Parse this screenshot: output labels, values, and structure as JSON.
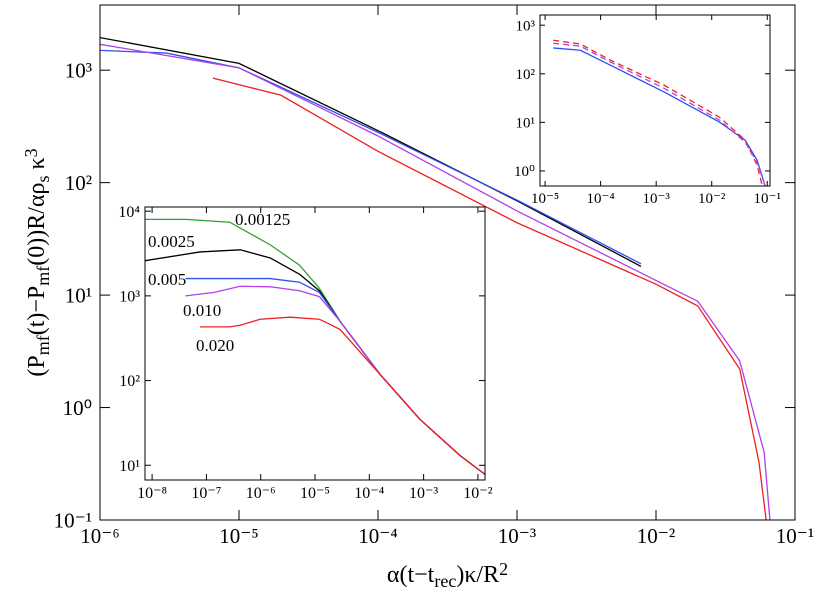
{
  "chart_data": [
    {
      "type": "line",
      "xscale": "log",
      "yscale": "log",
      "xlabel": [
        {
          "text": "α(t−t"
        },
        {
          "text": "rec",
          "shift": "sub"
        },
        {
          "text": ")κ/R"
        },
        {
          "text": "2",
          "shift": "sup"
        }
      ],
      "ylabel": [
        {
          "text": "(P"
        },
        {
          "text": "mf",
          "shift": "sub"
        },
        {
          "text": "(t)−P"
        },
        {
          "text": "mf",
          "shift": "sub"
        },
        {
          "text": "(0))R/αρ"
        },
        {
          "text": "s",
          "shift": "sub"
        },
        {
          "text": " κ"
        },
        {
          "text": "3",
          "shift": "sup"
        }
      ],
      "xlim": [
        1e-06,
        0.1
      ],
      "ylim": [
        0.1,
        3800
      ],
      "xticks": [
        {
          "value": 1e-06,
          "label": "10⁻⁶"
        },
        {
          "value": 1e-05,
          "label": "10⁻⁵"
        },
        {
          "value": 0.0001,
          "label": "10⁻⁴"
        },
        {
          "value": 0.001,
          "label": "10⁻³"
        },
        {
          "value": 0.01,
          "label": "10⁻²"
        },
        {
          "value": 0.1,
          "label": "10⁻¹"
        }
      ],
      "yticks": [
        {
          "value": 0.1,
          "label": "10⁻¹"
        },
        {
          "value": 1,
          "label": "10⁰"
        },
        {
          "value": 10,
          "label": "10¹"
        },
        {
          "value": 100,
          "label": "10²"
        },
        {
          "value": 1000,
          "label": "10³"
        }
      ],
      "series": [
        {
          "color": "#000000",
          "x": [
            1e-06,
            1e-05,
            0.0001,
            0.001,
            0.0078
          ],
          "values": [
            1950,
            1150,
            290,
            69,
            18
          ]
        },
        {
          "color": "#3050f0",
          "x": [
            1e-06,
            3e-06,
            1e-05,
            0.0001,
            0.001,
            0.0078
          ],
          "values": [
            1500,
            1420,
            1050,
            280,
            70,
            19
          ]
        },
        {
          "color": "#b040e8",
          "x": [
            1e-06,
            1e-05,
            0.0001,
            0.001,
            0.01,
            0.02,
            0.04,
            0.06,
            0.066
          ],
          "values": [
            1700,
            1050,
            260,
            56,
            13.5,
            8.8,
            2.6,
            0.4,
            0.1
          ]
        },
        {
          "color": "#f02020",
          "x": [
            6.5e-06,
            2e-05,
            0.0001,
            0.001,
            0.01,
            0.02,
            0.04,
            0.055,
            0.062
          ],
          "values": [
            850,
            600,
            190,
            44,
            12.5,
            8,
            2.2,
            0.33,
            0.1
          ]
        }
      ]
    },
    {
      "type": "line",
      "xscale": "log",
      "yscale": "log",
      "legend": "inline",
      "xlim": [
        7.4e-09,
        0.0135
      ],
      "ylim": [
        6.7,
        11200
      ],
      "xticks": [
        {
          "value": 1e-08,
          "label": "10⁻⁸"
        },
        {
          "value": 1e-07,
          "label": "10⁻⁷"
        },
        {
          "value": 1e-06,
          "label": "10⁻⁶"
        },
        {
          "value": 1e-05,
          "label": "10⁻⁵"
        },
        {
          "value": 0.0001,
          "label": "10⁻⁴"
        },
        {
          "value": 0.001,
          "label": "10⁻³"
        },
        {
          "value": 0.01,
          "label": "10⁻²"
        }
      ],
      "yticks": [
        {
          "value": 10,
          "label": "10¹"
        },
        {
          "value": 100,
          "label": "10²"
        },
        {
          "value": 1000,
          "label": "10³"
        },
        {
          "value": 10000,
          "label": "10⁴"
        }
      ],
      "series": [
        {
          "name": "0.00125",
          "color": "#30a030",
          "x": [
            7.4e-09,
            4.1e-08,
            2.7e-07,
            1.5e-06,
            5.2e-06,
            1.2e-05,
            2.9e-05,
            0.00016,
            0.00085,
            0.0047,
            0.0135
          ],
          "values": [
            8000,
            8000,
            7400,
            4000,
            2300,
            1230,
            500,
            117,
            35,
            13,
            7.8
          ]
        },
        {
          "name": "0.0025",
          "color": "#000000",
          "x": [
            7.4e-09,
            7.6e-08,
            4.2e-07,
            1.5e-06,
            5.2e-06,
            1.2e-05,
            2.9e-05,
            0.00016,
            0.00085,
            0.0047,
            0.0135
          ],
          "values": [
            2600,
            3300,
            3500,
            2800,
            1800,
            1150,
            500,
            117,
            35,
            13,
            7.8
          ]
        },
        {
          "name": "0.005",
          "color": "#3050f0",
          "x": [
            4.1e-08,
            2.7e-07,
            1.5e-06,
            5.2e-06,
            1.2e-05,
            2.9e-05,
            0.00016,
            0.00085,
            0.0047,
            0.0135
          ],
          "values": [
            1600,
            1600,
            1600,
            1450,
            1100,
            500,
            117,
            35,
            13,
            7.8
          ]
        },
        {
          "name": "0.010",
          "color": "#b040e8",
          "x": [
            4.1e-08,
            1.4e-07,
            4.2e-07,
            1.5e-06,
            5.2e-06,
            1.2e-05,
            2.9e-05,
            0.00016,
            0.00085,
            0.0047,
            0.0135
          ],
          "values": [
            1000,
            1100,
            1300,
            1280,
            1150,
            980,
            500,
            117,
            35,
            13,
            7.8
          ]
        },
        {
          "name": "0.020",
          "color": "#f02020",
          "x": [
            7.6e-08,
            2.7e-07,
            4.2e-07,
            9.8e-07,
            3.5e-06,
            1.2e-05,
            1.9e-05,
            2.9e-05,
            0.00016,
            0.00085,
            0.0047,
            0.0135
          ],
          "values": [
            430,
            430,
            450,
            530,
            560,
            530,
            460,
            400,
            117,
            35,
            13,
            7.8
          ]
        }
      ]
    },
    {
      "type": "line",
      "xscale": "log",
      "yscale": "log",
      "xlim": [
        8.1e-06,
        0.112
      ],
      "ylim": [
        0.49,
        1620
      ],
      "xticks": [
        {
          "value": 1e-05,
          "label": "10⁻⁵"
        },
        {
          "value": 0.0001,
          "label": "10⁻⁴"
        },
        {
          "value": 0.001,
          "label": "10⁻³"
        },
        {
          "value": 0.01,
          "label": "10⁻²"
        },
        {
          "value": 0.1,
          "label": "10⁻¹"
        }
      ],
      "yticks": [
        {
          "value": 1,
          "label": "10⁰"
        },
        {
          "value": 10,
          "label": "10¹"
        },
        {
          "value": 100,
          "label": "10²"
        },
        {
          "value": 1000,
          "label": "10³"
        }
      ],
      "series": [
        {
          "color": "#3050f0",
          "dash": false,
          "x": [
            1.4e-05,
            4.3e-05,
            0.00015,
            0.0014,
            0.014,
            0.04,
            0.066,
            0.091
          ],
          "values": [
            340,
            305,
            150,
            42,
            10,
            4.3,
            1.65,
            0.5
          ]
        },
        {
          "color": "#f02020",
          "dash": true,
          "x": [
            1.4e-05,
            4.3e-05,
            0.00015,
            0.0014,
            0.014,
            0.04,
            0.066,
            0.081
          ],
          "values": [
            490,
            410,
            190,
            58,
            12.6,
            4.3,
            1.3,
            0.5
          ]
        },
        {
          "color": "#b040e8",
          "dash": true,
          "x": [
            1.4e-05,
            4.3e-05,
            0.00015,
            0.0014,
            0.014,
            0.04,
            0.066,
            0.091
          ],
          "values": [
            425,
            370,
            174,
            50,
            11,
            3.9,
            1.5,
            0.5
          ]
        }
      ]
    }
  ]
}
